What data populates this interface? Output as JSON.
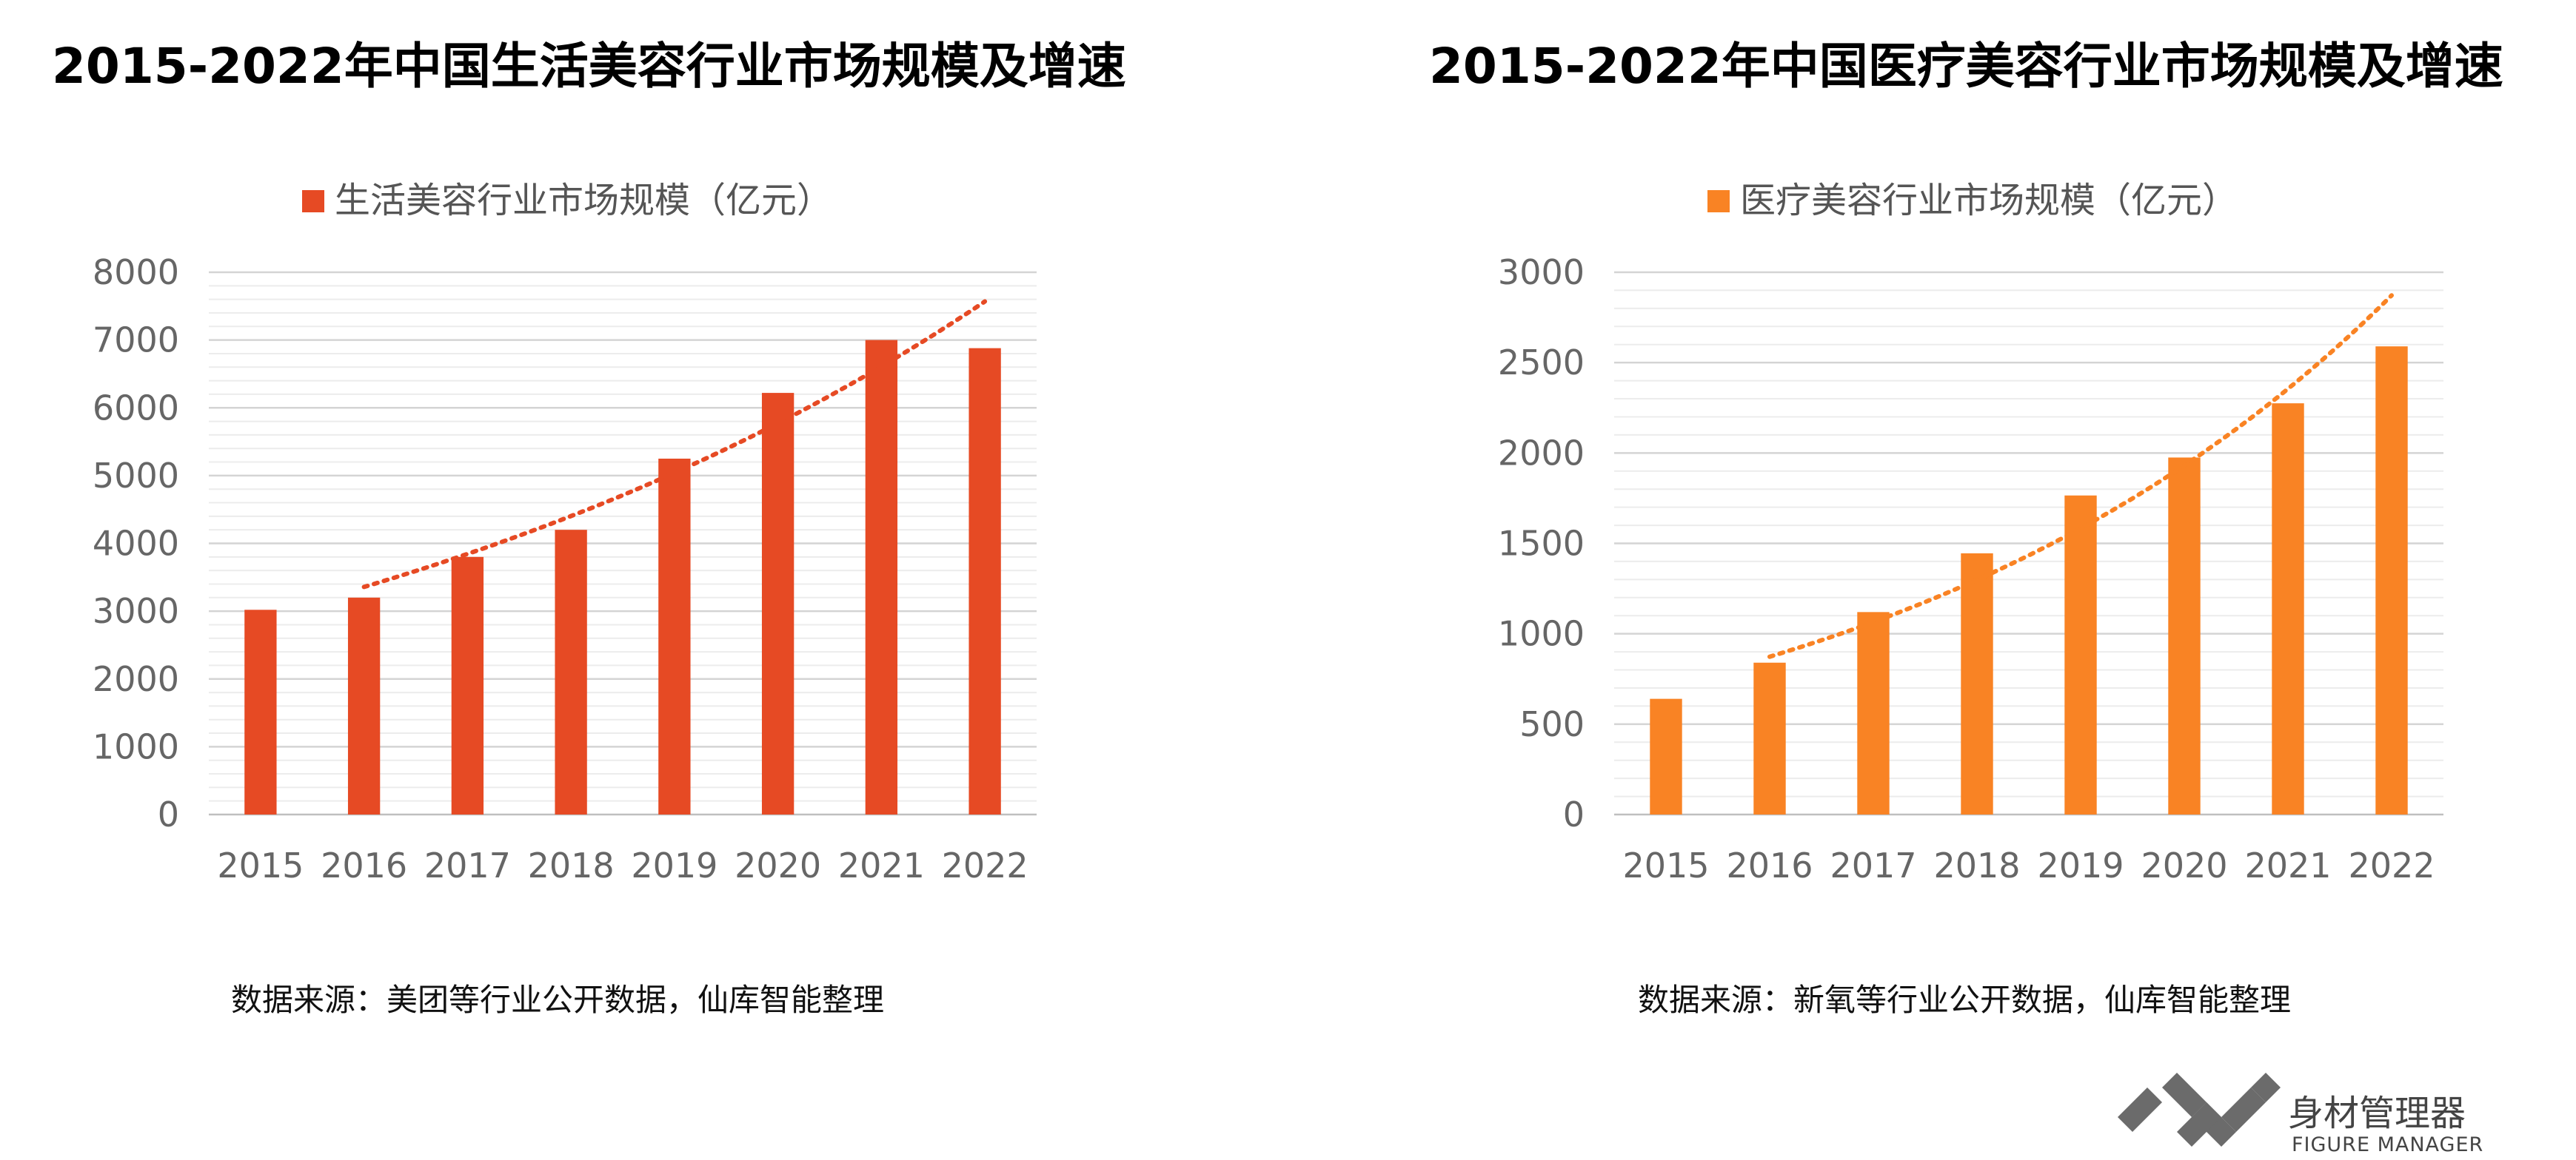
{
  "chart_data": [
    {
      "type": "bar",
      "title": "2015-2022年中国生活美容行业市场规模及增速",
      "categories": [
        "2015",
        "2016",
        "2017",
        "2018",
        "2019",
        "2020",
        "2021",
        "2022"
      ],
      "series": [
        {
          "name": "生活美容行业市场规模（亿元）",
          "values": [
            3020,
            3200,
            3800,
            4200,
            5250,
            6220,
            7000,
            6880
          ]
        }
      ],
      "trendline": {
        "style": "dotted",
        "from_category": "2016",
        "to_category": "2022"
      },
      "yticks": [
        "0",
        "1000",
        "2000",
        "3000",
        "4000",
        "5000",
        "6000",
        "7000",
        "8000"
      ],
      "ylim": [
        0,
        8000
      ],
      "grid": true,
      "legend": "top",
      "color": "#E64A24",
      "source": "数据来源：美团等行业公开数据，仙库智能整理"
    },
    {
      "type": "bar",
      "title": "2015-2022年中国医疗美容行业市场规模及增速",
      "categories": [
        "2015",
        "2016",
        "2017",
        "2018",
        "2019",
        "2020",
        "2021",
        "2022"
      ],
      "series": [
        {
          "name": "医疗美容行业市场规模（亿元）",
          "values": [
            640,
            840,
            1120,
            1445,
            1765,
            1975,
            2275,
            2590
          ]
        }
      ],
      "trendline": {
        "style": "dotted",
        "from_category": "2016",
        "to_category": "2022"
      },
      "yticks": [
        "0",
        "500",
        "1000",
        "1500",
        "2000",
        "2500",
        "3000"
      ],
      "ylim": [
        0,
        3000
      ],
      "grid": true,
      "legend": "top",
      "color": "#F98324",
      "source": "数据来源：新氧等行业公开数据，仙库智能整理"
    }
  ],
  "logo": {
    "cn": "身材管理器",
    "en": "FIGURE MANAGER"
  }
}
